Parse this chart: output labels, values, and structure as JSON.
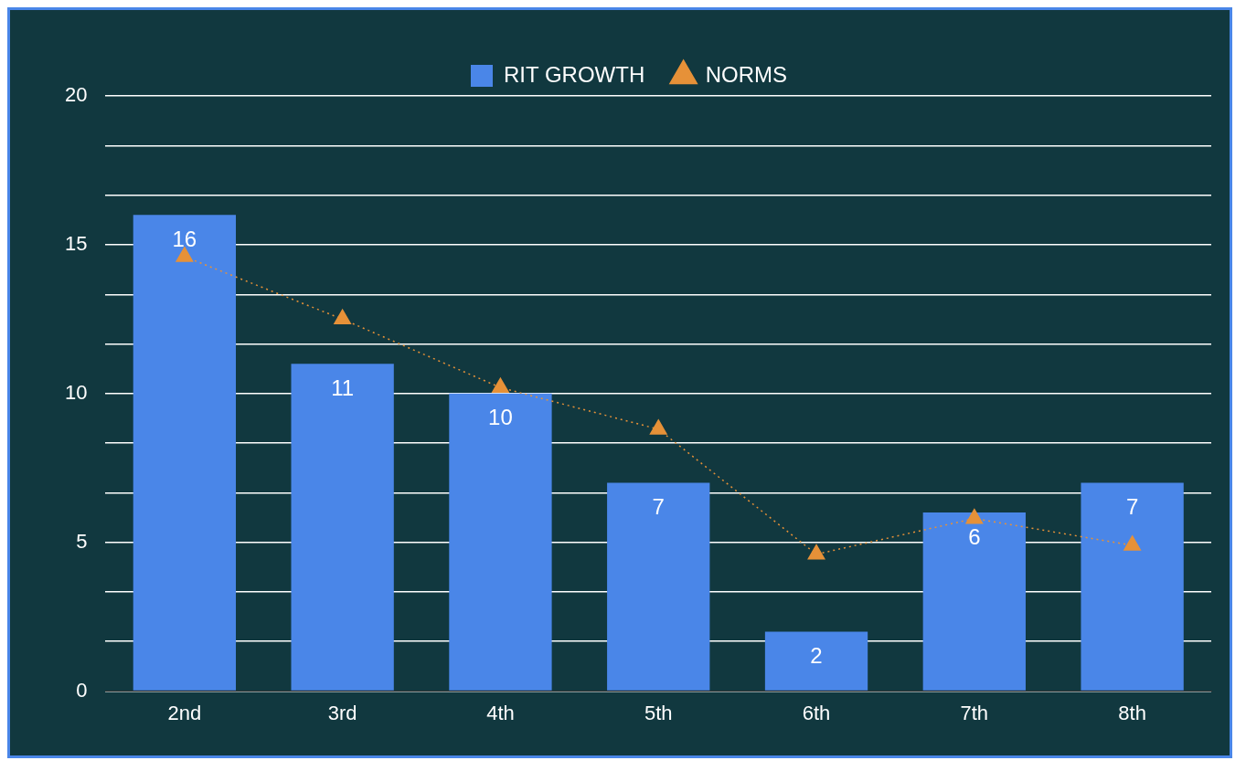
{
  "chart_data": {
    "type": "bar",
    "categories": [
      "2nd",
      "3rd",
      "4th",
      "5th",
      "6th",
      "7th",
      "8th"
    ],
    "series": [
      {
        "name": "RIT GROWTH",
        "color": "#4a86e8",
        "values": [
          16,
          11,
          10,
          7,
          2,
          6,
          7
        ],
        "data_labels": true
      },
      {
        "name": "NORMS",
        "type": "line",
        "color": "#e69138",
        "values": [
          14.6,
          12.5,
          10.2,
          8.8,
          4.6,
          5.8,
          4.9
        ],
        "marker": "triangle",
        "line_style": "dotted"
      }
    ],
    "ylim": [
      0,
      20
    ],
    "yticks": [
      0,
      {
        "value": 1.67,
        "label": null
      },
      {
        "value": 3.33,
        "label": null
      },
      5,
      {
        "value": 6.67,
        "label": null
      },
      {
        "value": 8.33,
        "label": null
      },
      10,
      {
        "value": 11.67,
        "label": null
      },
      {
        "value": 13.33,
        "label": null
      },
      15,
      {
        "value": 16.67,
        "label": null
      },
      {
        "value": 18.33,
        "label": null
      },
      20
    ],
    "grid": "y",
    "legend": "top"
  }
}
